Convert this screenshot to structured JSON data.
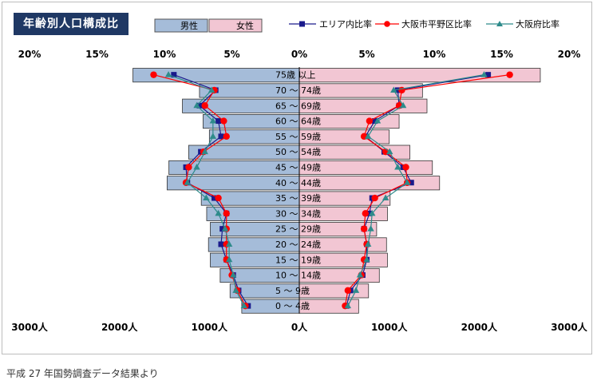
{
  "title": "年齢別人口構成比",
  "source_note": "平成 27 年国勢調査データ結果より",
  "legend": {
    "male": "男性",
    "female": "女性",
    "area_ratio": "エリア内比率",
    "city_ratio": "大阪市平野区比率",
    "pref_ratio": "大阪府比率"
  },
  "colors": {
    "male_bar": "#a5bcd9",
    "female_bar": "#f2c6d3",
    "area_marker": "#1a1a8c",
    "city_marker": "#ff0000",
    "pref_marker": "#2e8b8b",
    "title_bg": "#1f3864"
  },
  "chart_data": {
    "type": "bar",
    "orientation": "horizontal population pyramid",
    "top_axis": {
      "ticks": [
        "20%",
        "15%",
        "10%",
        "5%",
        "0%",
        "5%",
        "10%",
        "15%",
        "20%"
      ],
      "range_pct": [
        -20,
        20
      ]
    },
    "bottom_axis": {
      "ticks": [
        "3000人",
        "2000人",
        "1000人",
        "0人",
        "1000人",
        "2000人",
        "3000人"
      ],
      "range_people": [
        -3000,
        3000
      ]
    },
    "categories": [
      "75歳 以上",
      "70 ～ 74歳",
      "65 ～ 69歳",
      "60 ～ 64歳",
      "55 ～ 59歳",
      "50 ～ 54歳",
      "45 ～ 49歳",
      "40 ～ 44歳",
      "35 ～ 39歳",
      "30 ～ 34歳",
      "25 ～ 29歳",
      "20 ～ 24歳",
      "15 ～ 19歳",
      "10 ～ 14歳",
      "5 ～ 9歳",
      "0 ～ 4歳"
    ],
    "series": [
      {
        "name": "男性",
        "unit": "人",
        "values": [
          1850,
          1110,
          1300,
          1070,
          1000,
          1230,
          1450,
          1470,
          1090,
          1030,
          990,
          1010,
          990,
          880,
          770,
          640
        ]
      },
      {
        "name": "女性",
        "unit": "人",
        "values": [
          2680,
          1370,
          1420,
          1110,
          1000,
          1230,
          1480,
          1560,
          1010,
          980,
          860,
          970,
          980,
          890,
          770,
          660
        ]
      },
      {
        "name": "エリア内比率",
        "unit": "%",
        "male": [
          9.3,
          6.2,
          7.4,
          6.0,
          5.8,
          7.3,
          8.4,
          8.3,
          6.3,
          5.4,
          5.7,
          5.8,
          5.4,
          4.9,
          4.5,
          3.8
        ],
        "female": [
          14.0,
          7.3,
          7.4,
          5.6,
          4.9,
          6.3,
          7.7,
          8.3,
          5.4,
          5.2,
          4.8,
          5.0,
          5.0,
          4.7,
          3.8,
          3.5
        ]
      },
      {
        "name": "大阪市平野区比率",
        "unit": "%",
        "male": [
          10.8,
          6.3,
          7.0,
          5.6,
          5.4,
          7.1,
          8.2,
          8.4,
          6.0,
          5.4,
          5.4,
          5.4,
          5.4,
          5.0,
          4.6,
          4.0
        ],
        "female": [
          15.6,
          7.6,
          7.4,
          5.2,
          4.8,
          6.4,
          7.9,
          8.0,
          5.6,
          4.9,
          4.8,
          5.0,
          4.8,
          4.6,
          3.6,
          3.4
        ]
      },
      {
        "name": "大阪府比率",
        "unit": "%",
        "male": [
          9.7,
          6.5,
          7.6,
          6.4,
          6.4,
          7.0,
          7.6,
          8.3,
          6.9,
          6.0,
          5.5,
          5.2,
          5.2,
          4.9,
          4.7,
          4.1
        ],
        "female": [
          13.7,
          7.0,
          7.7,
          5.8,
          5.1,
          6.7,
          7.3,
          8.0,
          6.4,
          5.4,
          5.3,
          5.1,
          5.0,
          4.5,
          4.2,
          3.6
        ]
      }
    ],
    "grid": false,
    "legend_position": "top"
  }
}
